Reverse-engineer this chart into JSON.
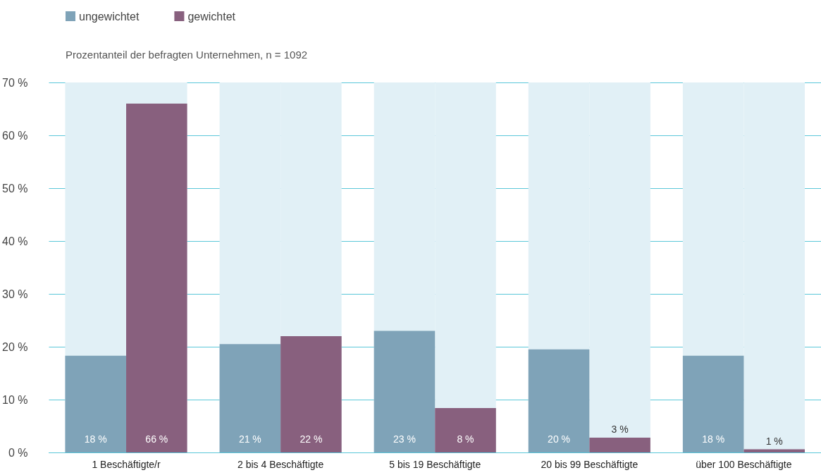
{
  "chart_data": {
    "type": "bar",
    "subtitle": "Prozentanteil der befragten Unternehmen, n = 1092",
    "categories": [
      "1 Beschäftigte/r",
      "2 bis 4 Beschäftigte",
      "5 bis 19 Beschäftigte",
      "20 bis 99 Beschäftigte",
      "über 100 Beschäftigte"
    ],
    "series": [
      {
        "name": "ungewichtet",
        "color": "#7fa3b8",
        "values": [
          18.3,
          20.5,
          23,
          19.5,
          18.3
        ],
        "value_labels": [
          "18 %",
          "21 %",
          "23 %",
          "20 %",
          "18 %"
        ]
      },
      {
        "name": "gewichtet",
        "color": "#88607e",
        "values": [
          66,
          22,
          8.4,
          2.8,
          0.6
        ],
        "value_labels": [
          "66 %",
          "22 %",
          "8 %",
          "3 %",
          "1 %"
        ]
      }
    ],
    "ylim": [
      0,
      70
    ],
    "yticks": [
      {
        "value": 0,
        "label": "0 %"
      },
      {
        "value": 10,
        "label": "10 %"
      },
      {
        "value": 20,
        "label": "20 %"
      },
      {
        "value": 30,
        "label": "30 %"
      },
      {
        "value": 40,
        "label": "40 %"
      },
      {
        "value": 50,
        "label": "50 %"
      },
      {
        "value": 60,
        "label": "60 %"
      },
      {
        "value": 70,
        "label": "70 %"
      }
    ],
    "grid": "y",
    "legend": "top left"
  }
}
